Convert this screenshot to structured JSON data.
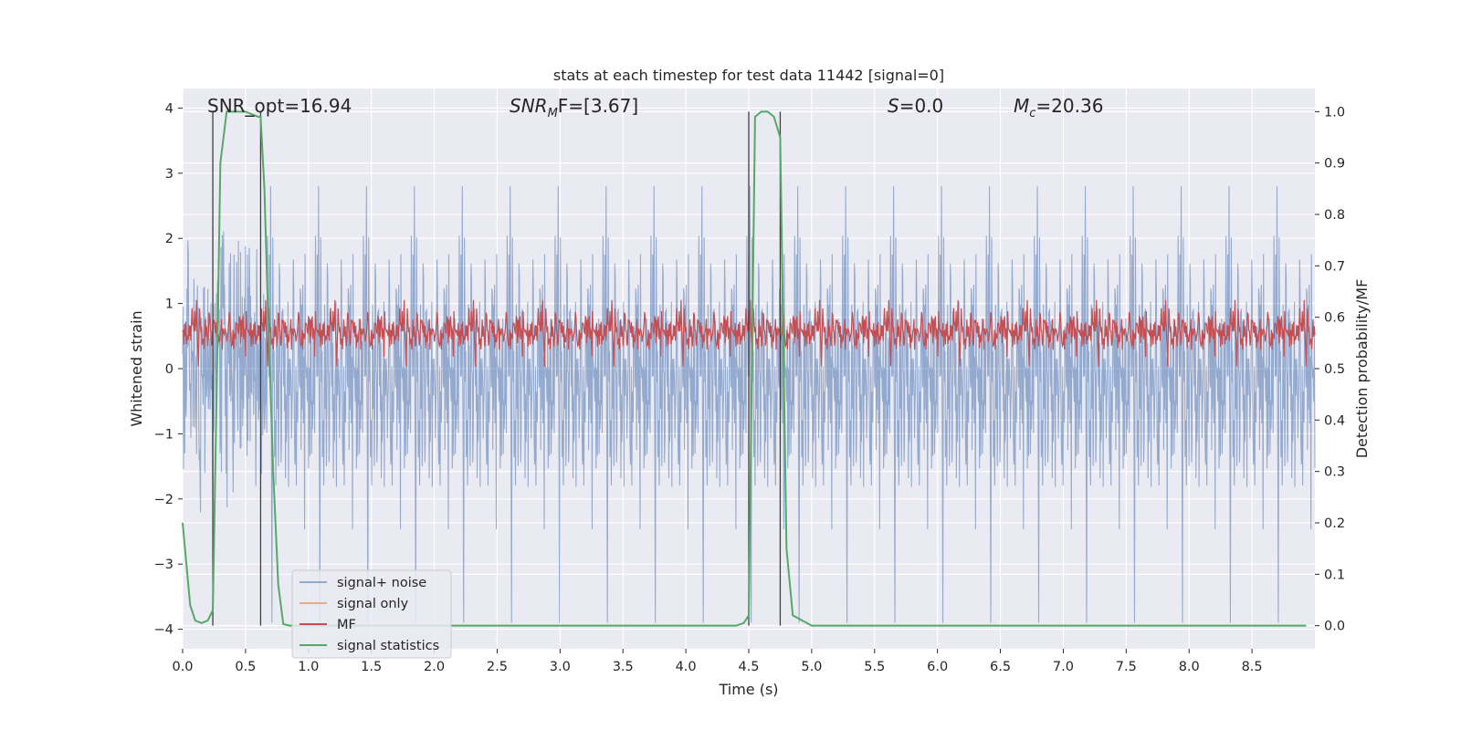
{
  "chart_data": {
    "type": "line",
    "title": "stats at each timestep for test data 11442 [signal=0]",
    "xlabel": "Time (s)",
    "ylabel_left": "Whitened strain",
    "ylabel_right": "Detection probability/MF",
    "xlim": [
      0.0,
      9.0
    ],
    "ylim_left": [
      -4.3,
      4.3
    ],
    "ylim_right": [
      -0.045,
      1.045
    ],
    "xticks": [
      "0.0",
      "0.5",
      "1.0",
      "1.5",
      "2.0",
      "2.5",
      "3.0",
      "3.5",
      "4.0",
      "4.5",
      "5.0",
      "5.5",
      "6.0",
      "6.5",
      "7.0",
      "7.5",
      "8.0",
      "8.5"
    ],
    "yticks_left": [
      "−4",
      "−3",
      "−2",
      "−1",
      "0",
      "1",
      "2",
      "3",
      "4"
    ],
    "yticks_right": [
      "0.0",
      "0.1",
      "0.2",
      "0.3",
      "0.4",
      "0.5",
      "0.6",
      "0.7",
      "0.8",
      "0.9",
      "1.0"
    ],
    "annotations": {
      "snr_opt": "SNR_opt=16.94",
      "snr_mf_base": "SNR",
      "snr_mf_sub": "M",
      "snr_mf_rest": "F=[3.67]",
      "s_base": "S",
      "s_rest": "=0.0",
      "mc_base": "M",
      "mc_sub": "c",
      "mc_rest": "=20.36"
    },
    "legend": {
      "position": "lower-left",
      "entries": [
        "signal+ noise",
        "signal only",
        "MF",
        "signal statistics"
      ]
    },
    "grid": true,
    "vertical_markers_s": [
      0.24,
      0.62,
      4.5,
      4.75
    ],
    "series": [
      {
        "name": "signal+ noise",
        "axis": "left",
        "note_kind": "noise",
        "color": "#4c72b0",
        "amplitude_range": [
          -3.9,
          3.9
        ],
        "values": []
      },
      {
        "name": "signal only",
        "axis": "left",
        "color": "#dd8452",
        "values": []
      },
      {
        "name": "MF",
        "axis": "right",
        "color": "#c44e52",
        "range": [
          0.52,
          0.63
        ],
        "values": []
      },
      {
        "name": "signal statistics",
        "axis": "right",
        "color": "#55a868",
        "x": [
          0.0,
          0.03,
          0.06,
          0.1,
          0.15,
          0.2,
          0.24,
          0.27,
          0.3,
          0.35,
          0.4,
          0.45,
          0.5,
          0.55,
          0.6,
          0.62,
          0.65,
          0.68,
          0.72,
          0.76,
          0.8,
          0.85,
          1.0,
          2.0,
          3.0,
          4.0,
          4.4,
          4.46,
          4.5,
          4.55,
          4.6,
          4.65,
          4.7,
          4.75,
          4.8,
          4.85,
          5.0,
          6.0,
          7.0,
          8.0,
          8.93
        ],
        "y": [
          0.2,
          0.12,
          0.04,
          0.01,
          0.005,
          0.01,
          0.03,
          0.45,
          0.9,
          1.0,
          1.0,
          1.0,
          1.0,
          0.995,
          0.99,
          0.99,
          0.85,
          0.6,
          0.3,
          0.08,
          0.003,
          0.0,
          0.0,
          0.0,
          0.0,
          0.0,
          0.0,
          0.005,
          0.02,
          0.99,
          1.0,
          1.0,
          0.99,
          0.95,
          0.15,
          0.02,
          0.0,
          0.0,
          0.0,
          0.0,
          0.0
        ]
      }
    ]
  }
}
